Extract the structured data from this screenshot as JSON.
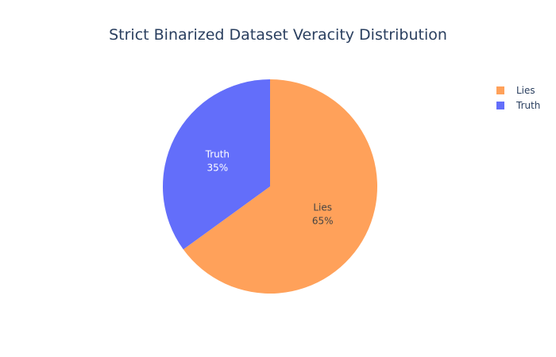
{
  "chart_data": {
    "type": "pie",
    "title": "Strict Binarized Dataset Veracity Distribution",
    "slices": [
      {
        "label": "Lies",
        "value": 65,
        "percent_text": "65%",
        "color": "#ffa15a",
        "text_color": "#444444"
      },
      {
        "label": "Truth",
        "value": 35,
        "percent_text": "35%",
        "color": "#636efa",
        "text_color": "#ffffff"
      }
    ],
    "legend": {
      "placement": "top-right",
      "items": [
        "Lies",
        "Truth"
      ]
    }
  }
}
